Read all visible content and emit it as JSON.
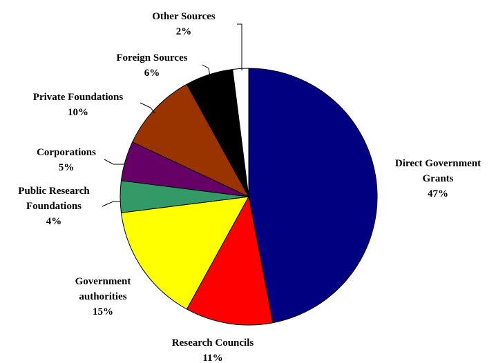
{
  "chart_data": {
    "type": "pie",
    "start": "12 o'clock",
    "direction": "clockwise",
    "slices": [
      {
        "label": [
          "Direct Government",
          "Grants"
        ],
        "pct_label": "47%",
        "value": 47,
        "color": "#000080"
      },
      {
        "label": [
          "Research Councils"
        ],
        "pct_label": "11%",
        "value": 11,
        "color": "#ff0000"
      },
      {
        "label": [
          "Government",
          "authorities"
        ],
        "pct_label": "15%",
        "value": 15,
        "color": "#ffff00"
      },
      {
        "label": [
          "Public Research",
          "Foundations"
        ],
        "pct_label": "4%",
        "value": 4,
        "color": "#339966"
      },
      {
        "label": [
          "Corporations"
        ],
        "pct_label": "5%",
        "value": 5,
        "color": "#660066"
      },
      {
        "label": [
          "Private Foundations"
        ],
        "pct_label": "10%",
        "value": 10,
        "color": "#993300"
      },
      {
        "label": [
          "Foreign Sources"
        ],
        "pct_label": "6%",
        "value": 6,
        "color": "#000000"
      },
      {
        "label": [
          "Other Sources"
        ],
        "pct_label": "2%",
        "value": 2,
        "color": "#ffffff"
      }
    ]
  }
}
